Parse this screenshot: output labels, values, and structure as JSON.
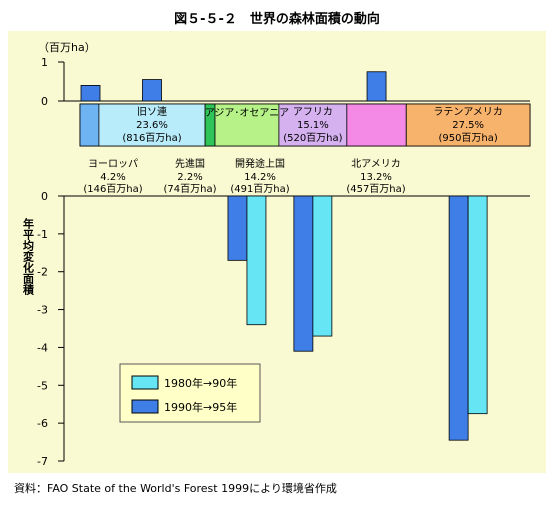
{
  "title": "図５-５-２　世界の森林面積の動向",
  "source": "資料：FAO State of the World's Forest 1999により環境省作成",
  "chart_data": {
    "type": "bar",
    "title": "図５-５-２　世界の森林面積の動向",
    "unit": "（百万ha）",
    "ylabel": "年平均変化面積",
    "ylim": [
      -7,
      1
    ],
    "yticks_upper": [
      "1",
      "0"
    ],
    "yticks_lower": [
      "0",
      "-1",
      "-2",
      "-3",
      "-4",
      "-5",
      "-6",
      "-7"
    ],
    "legend": [
      {
        "label": "1980年→90年",
        "color": "#66e6f5"
      },
      {
        "label": "1990年→95年",
        "color": "#3f7ee6"
      }
    ],
    "regions": [
      {
        "name": "ヨーロッパ",
        "share": "4.2%",
        "area": "(146百万ha)",
        "share_pct": 4.2,
        "color": "#6fb4f2",
        "v80_90": null,
        "v90_95": 0.4
      },
      {
        "name": "旧ソ連",
        "share": "23.6%",
        "area": "(816百万ha)",
        "share_pct": 23.6,
        "color": "#b9ecfa",
        "v80_90": null,
        "v90_95": 0.55
      },
      {
        "name": "先進国",
        "share": "2.2%",
        "area": "(74百万ha)",
        "share_pct": 2.2,
        "color": "#2ec45a",
        "v80_90": null,
        "v90_95": null
      },
      {
        "name": "開発途上国",
        "share": "14.2%",
        "area": "(491百万ha)",
        "band_label": "アジア･オセアニア",
        "share_pct": 14.2,
        "color": "#b6f287",
        "v80_90": -3.4,
        "v90_95": -1.7
      },
      {
        "name": "アフリカ",
        "share": "15.1%",
        "area": "(520百万ha)",
        "share_pct": 15.1,
        "color": "#d5b1f0",
        "v80_90": -3.7,
        "v90_95": -4.1
      },
      {
        "name": "北アメリカ",
        "share": "13.2%",
        "area": "(457百万ha)",
        "share_pct": 13.2,
        "color": "#f58ae6",
        "v80_90": null,
        "v90_95": 0.75
      },
      {
        "name": "ラテンアメリカ",
        "share": "27.5%",
        "area": "(950百万ha)",
        "share_pct": 27.5,
        "color": "#f7b26c",
        "v80_90": -5.75,
        "v90_95": -6.45
      }
    ]
  }
}
